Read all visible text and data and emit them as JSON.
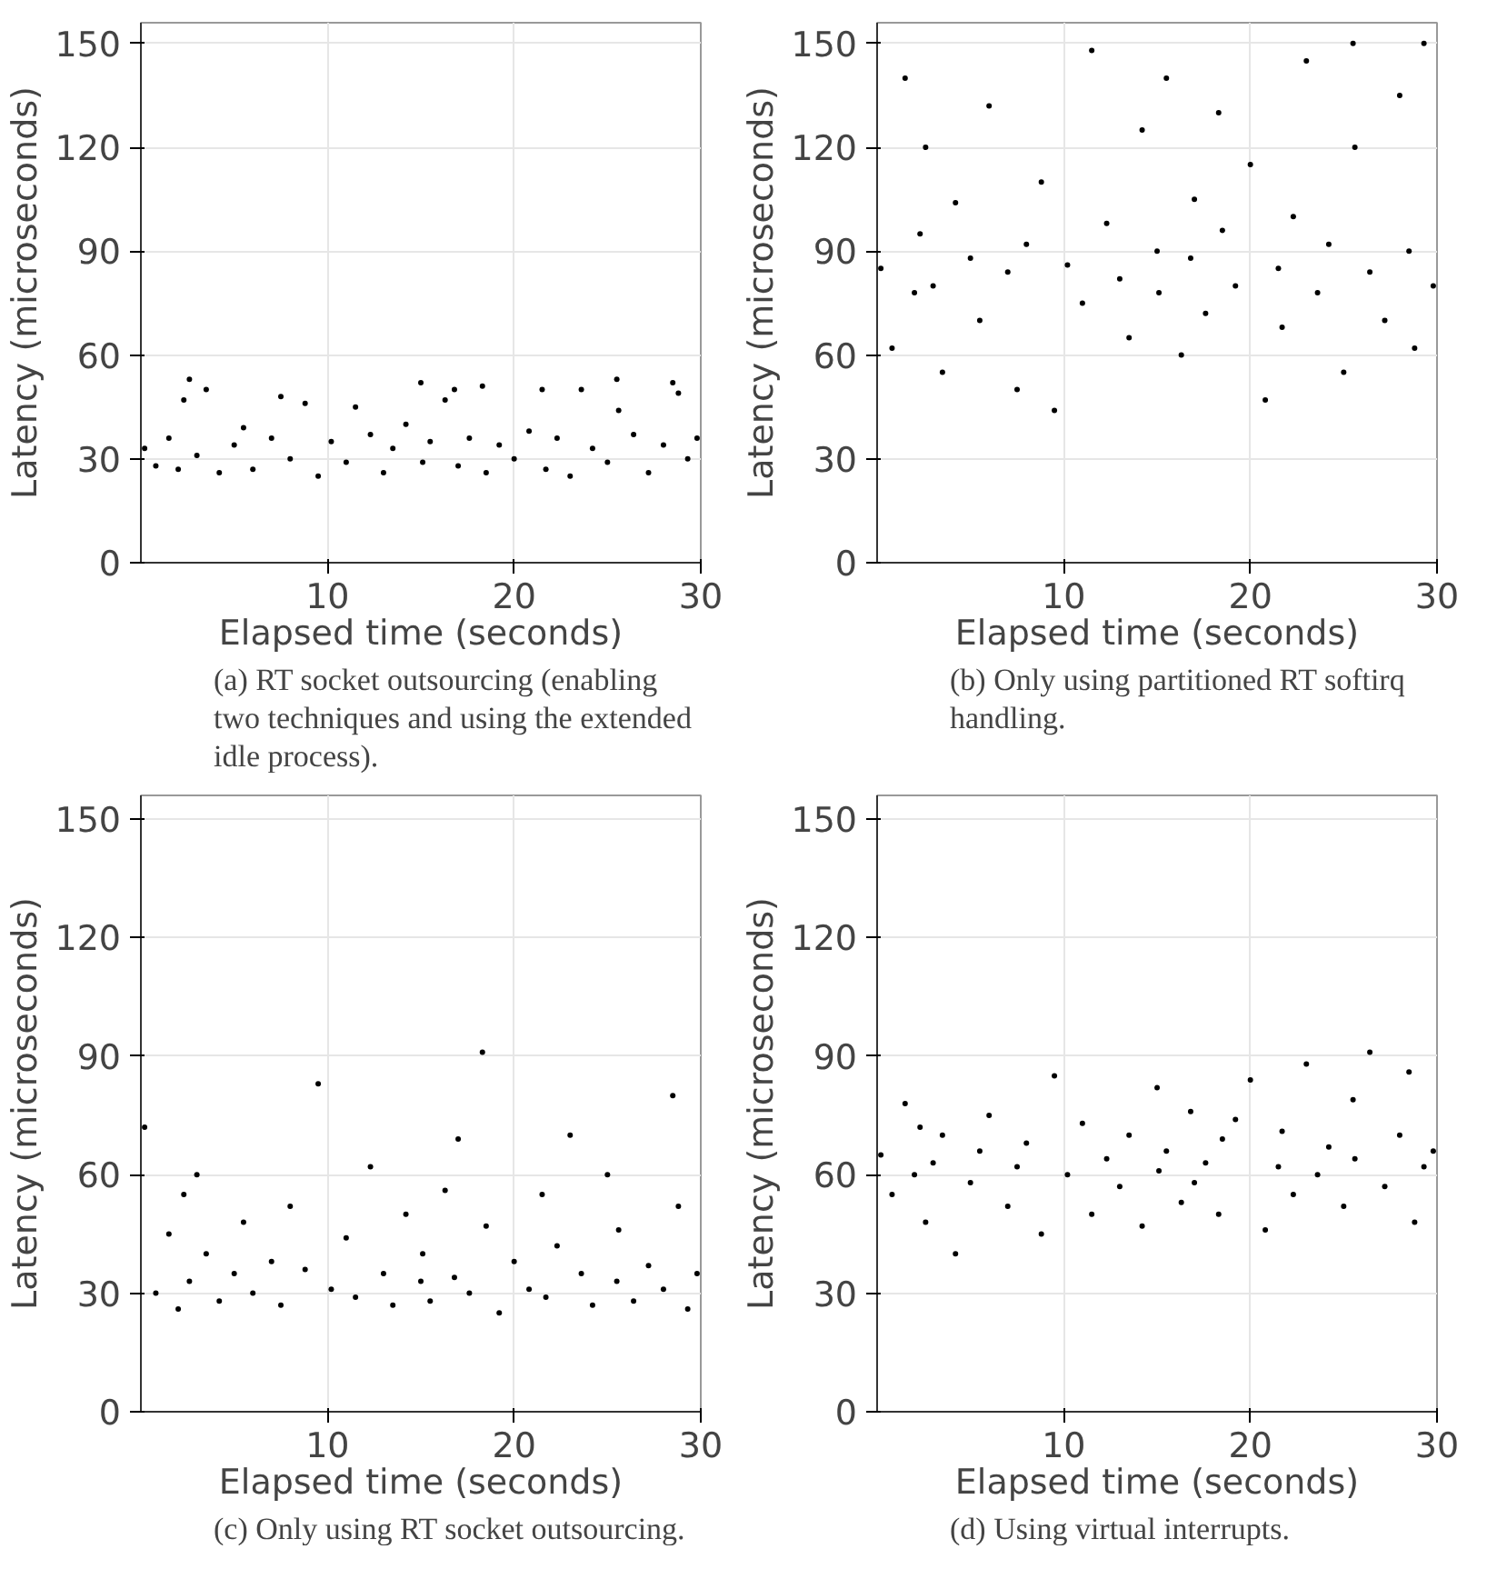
{
  "chart_data": [
    {
      "type": "scatter",
      "xlabel": "Elapsed time (seconds)",
      "ylabel": "Latency (microseconds)",
      "xlim": [
        0,
        30
      ],
      "ylim": [
        0,
        156
      ],
      "xticks": [
        10,
        20,
        30
      ],
      "yticks": [
        0,
        30,
        60,
        90,
        120,
        150
      ],
      "grid": true,
      "marker": "circle",
      "annotations": [
        "(a) RT socket outsourcing (enabling two techniques and using the extended idle process)."
      ],
      "series": [
        {
          "color": "#000000",
          "x": [
            0.2,
            0.8,
            1.5,
            2.0,
            2.3,
            2.6,
            3.0,
            3.5,
            4.2,
            5.0,
            5.5,
            6.0,
            7.0,
            7.5,
            8.0,
            8.8,
            9.5,
            10.2,
            11.0,
            11.5,
            12.3,
            13.0,
            13.5,
            14.2,
            15.0,
            15.1,
            15.5,
            16.3,
            16.8,
            17.0,
            17.6,
            18.3,
            18.5,
            19.2,
            20.0,
            20.8,
            21.5,
            21.7,
            22.3,
            23.0,
            23.6,
            24.2,
            25.0,
            25.5,
            25.6,
            26.4,
            27.2,
            28.0,
            28.5,
            28.8,
            29.3,
            29.8
          ],
          "values": [
            33,
            28,
            36,
            27,
            47,
            53,
            31,
            50,
            26,
            34,
            39,
            27,
            36,
            48,
            30,
            46,
            25,
            35,
            29,
            45,
            37,
            26,
            33,
            40,
            52,
            29,
            35,
            47,
            50,
            28,
            36,
            51,
            26,
            34,
            30,
            38,
            50,
            27,
            36,
            25,
            50,
            33,
            29,
            53,
            44,
            37,
            26,
            34,
            52,
            49,
            30,
            36
          ]
        }
      ]
    },
    {
      "type": "scatter",
      "xlabel": "Elapsed time (seconds)",
      "ylabel": "Latency (microseconds)",
      "xlim": [
        0,
        30
      ],
      "ylim": [
        0,
        156
      ],
      "xticks": [
        10,
        20,
        30
      ],
      "yticks": [
        0,
        30,
        60,
        90,
        120,
        150
      ],
      "grid": true,
      "marker": "circle",
      "annotations": [
        "(b) Only using partitioned RT softirq handling."
      ],
      "series": [
        {
          "color": "#000000",
          "x": [
            0.2,
            0.8,
            1.5,
            2.0,
            2.3,
            2.6,
            3.0,
            3.5,
            4.2,
            5.0,
            5.5,
            6.0,
            7.0,
            7.5,
            8.0,
            8.8,
            9.5,
            10.2,
            11.0,
            11.5,
            12.3,
            13.0,
            13.5,
            14.2,
            15.0,
            15.1,
            15.5,
            16.3,
            16.8,
            17.0,
            17.6,
            18.3,
            18.5,
            19.2,
            20.0,
            20.8,
            21.5,
            21.7,
            22.3,
            23.0,
            23.6,
            24.2,
            25.0,
            25.5,
            25.6,
            26.4,
            27.2,
            28.0,
            28.5,
            28.8,
            29.3,
            29.8
          ],
          "values": [
            85,
            62,
            140,
            78,
            95,
            120,
            80,
            55,
            104,
            88,
            70,
            132,
            84,
            50,
            92,
            110,
            44,
            86,
            75,
            148,
            98,
            82,
            65,
            125,
            90,
            78,
            140,
            60,
            88,
            105,
            72,
            130,
            96,
            80,
            115,
            47,
            85,
            68,
            100,
            145,
            78,
            92,
            55,
            150,
            120,
            84,
            70,
            135,
            90,
            62,
            150,
            80
          ]
        }
      ]
    },
    {
      "type": "scatter",
      "xlabel": "Elapsed time (seconds)",
      "ylabel": "Latency (microseconds)",
      "xlim": [
        0,
        30
      ],
      "ylim": [
        0,
        156
      ],
      "xticks": [
        10,
        20,
        30
      ],
      "yticks": [
        0,
        30,
        60,
        90,
        120,
        150
      ],
      "grid": true,
      "marker": "circle",
      "annotations": [
        "(c) Only using RT socket outsourcing."
      ],
      "series": [
        {
          "color": "#000000",
          "x": [
            0.2,
            0.8,
            1.5,
            2.0,
            2.3,
            2.6,
            3.0,
            3.5,
            4.2,
            5.0,
            5.5,
            6.0,
            7.0,
            7.5,
            8.0,
            8.8,
            9.5,
            10.2,
            11.0,
            11.5,
            12.3,
            13.0,
            13.5,
            14.2,
            15.0,
            15.1,
            15.5,
            16.3,
            16.8,
            17.0,
            17.6,
            18.3,
            18.5,
            19.2,
            20.0,
            20.8,
            21.5,
            21.7,
            22.3,
            23.0,
            23.6,
            24.2,
            25.0,
            25.5,
            25.6,
            26.4,
            27.2,
            28.0,
            28.5,
            28.8,
            29.3,
            29.8
          ],
          "values": [
            72,
            30,
            45,
            26,
            55,
            33,
            60,
            40,
            28,
            35,
            48,
            30,
            38,
            27,
            52,
            36,
            83,
            31,
            44,
            29,
            62,
            35,
            27,
            50,
            33,
            40,
            28,
            56,
            34,
            69,
            30,
            91,
            47,
            25,
            38,
            31,
            55,
            29,
            42,
            70,
            35,
            27,
            60,
            33,
            46,
            28,
            37,
            31,
            80,
            52,
            26,
            35
          ]
        }
      ]
    },
    {
      "type": "scatter",
      "xlabel": "Elapsed time (seconds)",
      "ylabel": "Latency (microseconds)",
      "xlim": [
        0,
        30
      ],
      "ylim": [
        0,
        156
      ],
      "xticks": [
        10,
        20,
        30
      ],
      "yticks": [
        0,
        30,
        60,
        90,
        120,
        150
      ],
      "grid": true,
      "marker": "circle",
      "annotations": [
        "(d) Using virtual interrupts."
      ],
      "series": [
        {
          "color": "#000000",
          "x": [
            0.2,
            0.8,
            1.5,
            2.0,
            2.3,
            2.6,
            3.0,
            3.5,
            4.2,
            5.0,
            5.5,
            6.0,
            7.0,
            7.5,
            8.0,
            8.8,
            9.5,
            10.2,
            11.0,
            11.5,
            12.3,
            13.0,
            13.5,
            14.2,
            15.0,
            15.1,
            15.5,
            16.3,
            16.8,
            17.0,
            17.6,
            18.3,
            18.5,
            19.2,
            20.0,
            20.8,
            21.5,
            21.7,
            22.3,
            23.0,
            23.6,
            24.2,
            25.0,
            25.5,
            25.6,
            26.4,
            27.2,
            28.0,
            28.5,
            28.8,
            29.3,
            29.8
          ],
          "values": [
            65,
            55,
            78,
            60,
            72,
            48,
            63,
            70,
            40,
            58,
            66,
            75,
            52,
            62,
            68,
            45,
            85,
            60,
            73,
            50,
            64,
            57,
            70,
            47,
            82,
            61,
            66,
            53,
            76,
            58,
            63,
            50,
            69,
            74,
            84,
            46,
            62,
            71,
            55,
            88,
            60,
            67,
            52,
            79,
            64,
            91,
            57,
            70,
            86,
            48,
            62,
            66
          ]
        }
      ]
    }
  ]
}
